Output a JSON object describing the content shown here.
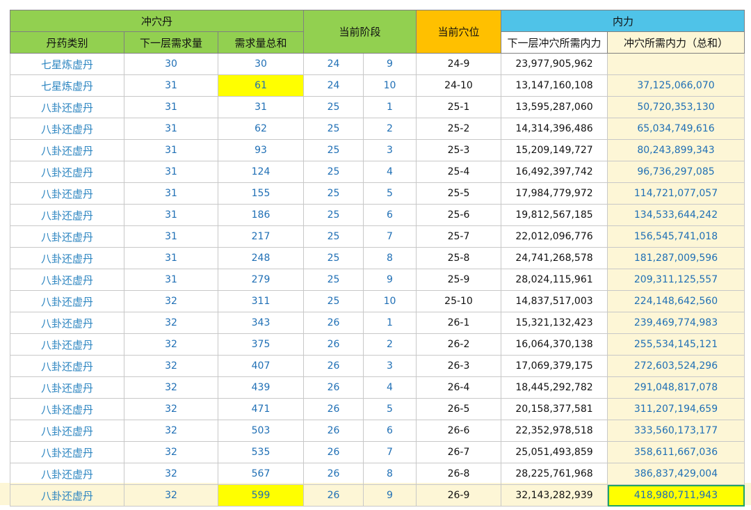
{
  "table": {
    "header": {
      "pill_group": "冲穴丹",
      "stage": "当前阶段",
      "point": "当前穴位",
      "power_group": "内力",
      "columns": [
        "丹药类别",
        "下一层需求量",
        "需求量总和",
        "下一层冲穴所需内力",
        "冲穴所需内力（总和）"
      ]
    },
    "rows": [
      [
        "七星炼虚丹",
        "30",
        "30",
        "24",
        "9",
        "24-9",
        "23,977,905,962"
      ],
      [
        "七星炼虚丹",
        "31",
        "61",
        "24",
        "10",
        "24-10",
        "13,147,160,108",
        "37,125,066,070"
      ],
      [
        "八卦还虚丹",
        "31",
        "31",
        "25",
        "1",
        "25-1",
        "13,595,287,060",
        "50,720,353,130"
      ],
      [
        "八卦还虚丹",
        "31",
        "62",
        "25",
        "2",
        "25-2",
        "14,314,396,486",
        "65,034,749,616"
      ],
      [
        "八卦还虚丹",
        "31",
        "93",
        "25",
        "3",
        "25-3",
        "15,209,149,727",
        "80,243,899,343"
      ],
      [
        "八卦还虚丹",
        "31",
        "124",
        "25",
        "4",
        "25-4",
        "16,492,397,742",
        "96,736,297,085"
      ],
      [
        "八卦还虚丹",
        "31",
        "155",
        "25",
        "5",
        "25-5",
        "17,984,779,972",
        "114,721,077,057"
      ],
      [
        "八卦还虚丹",
        "31",
        "186",
        "25",
        "6",
        "25-6",
        "19,812,567,185",
        "134,533,644,242"
      ],
      [
        "八卦还虚丹",
        "31",
        "217",
        "25",
        "7",
        "25-7",
        "22,012,096,776",
        "156,545,741,018"
      ],
      [
        "八卦还虚丹",
        "31",
        "248",
        "25",
        "8",
        "25-8",
        "24,741,268,578",
        "181,287,009,596"
      ],
      [
        "八卦还虚丹",
        "31",
        "279",
        "25",
        "9",
        "25-9",
        "28,024,115,961",
        "209,311,125,557"
      ],
      [
        "八卦还虚丹",
        "32",
        "311",
        "25",
        "10",
        "25-10",
        "14,837,517,003",
        "224,148,642,560"
      ],
      [
        "八卦还虚丹",
        "32",
        "343",
        "26",
        "1",
        "26-1",
        "15,321,132,423",
        "239,469,774,983"
      ],
      [
        "八卦还虚丹",
        "32",
        "375",
        "26",
        "2",
        "26-2",
        "16,064,370,138",
        "255,534,145,121"
      ],
      [
        "八卦还虚丹",
        "32",
        "407",
        "26",
        "3",
        "26-3",
        "17,069,379,175",
        "272,603,524,296"
      ],
      [
        "八卦还虚丹",
        "32",
        "439",
        "26",
        "4",
        "26-4",
        "18,445,292,782",
        "291,048,817,078"
      ],
      [
        "八卦还虚丹",
        "32",
        "471",
        "26",
        "5",
        "26-5",
        "20,158,377,581",
        "311,207,194,659"
      ],
      [
        "八卦还虚丹",
        "32",
        "503",
        "26",
        "6",
        "26-6",
        "22,352,978,518",
        "333,560,173,177"
      ],
      [
        "八卦还虚丹",
        "32",
        "535",
        "26",
        "7",
        "26-7",
        "25,051,493,859",
        "358,611,667,036"
      ],
      [
        "八卦还虚丹",
        "32",
        "567",
        "26",
        "8",
        "26-8",
        "28,225,761,968",
        "386,837,429,004"
      ],
      [
        "八卦还虚丹",
        "32",
        "599",
        "26",
        "9",
        "26-9",
        "32,143,282,939",
        "418,980,711,943"
      ]
    ]
  }
}
